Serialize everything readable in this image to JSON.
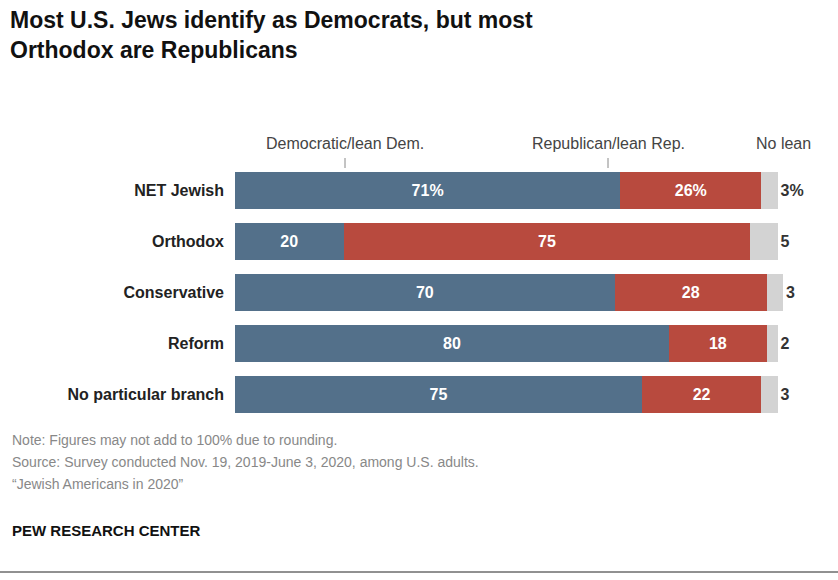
{
  "chart_data": {
    "type": "bar",
    "orientation": "horizontal",
    "stacked": true,
    "data_labels": true,
    "tick_labels": "y",
    "grid": false,
    "title": "Most U.S. Jews identify as Democrats, but most Orthodox are Republicans",
    "categories": [
      "NET Jewish",
      "Orthodox",
      "Conservative",
      "Reform",
      "No particular branch"
    ],
    "series": [
      {
        "name": "Democratic/lean Dem.",
        "color": "#53708a",
        "values": [
          71,
          20,
          70,
          80,
          75
        ],
        "value_labels": [
          "71%",
          "20",
          "70",
          "80",
          "75"
        ]
      },
      {
        "name": "Republican/lean Rep.",
        "color": "#b84a3e",
        "values": [
          26,
          75,
          28,
          18,
          22
        ],
        "value_labels": [
          "26%",
          "75",
          "28",
          "18",
          "22"
        ]
      },
      {
        "name": "No lean",
        "color": "#d3d3d3",
        "values": [
          3,
          5,
          3,
          2,
          3
        ],
        "value_labels": [
          "3%",
          "5",
          "3",
          "2",
          "3"
        ]
      }
    ],
    "xlim": [
      0,
      101
    ],
    "notes": [
      "Note: Figures may not add to 100% due to rounding.",
      "Source: Survey conducted Nov. 19, 2019-June 3, 2020, among U.S. adults.",
      "“Jewish Americans in 2020”"
    ],
    "credit": "PEW RESEARCH CENTER"
  }
}
